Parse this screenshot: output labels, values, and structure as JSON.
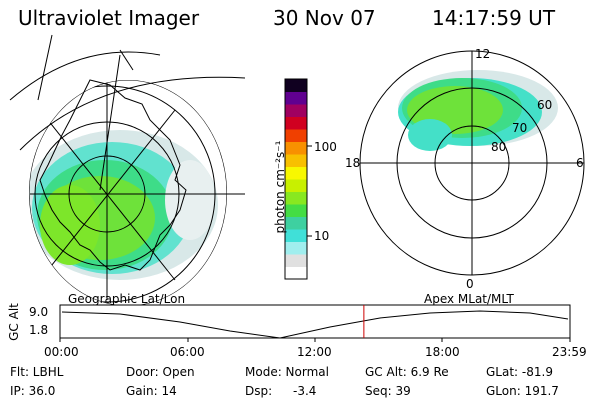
{
  "header": {
    "title": "Ultraviolet Imager",
    "date": "30 Nov 07",
    "time": "14:17:59 UT"
  },
  "left_panel": {
    "caption": "Geographic Lat/Lon"
  },
  "right_panel": {
    "caption": "Apex MLat/MLT",
    "mlt_labels": {
      "top": "12",
      "left": "18",
      "right": "6",
      "bottom": "0"
    },
    "lat_labels": [
      "60",
      "70",
      "80"
    ]
  },
  "colorbar": {
    "unit_label": "photon cm⁻²s⁻¹",
    "ticks": [
      "100",
      "10"
    ],
    "colors": [
      "#ffffff",
      "#e0e0e0",
      "#a0eeee",
      "#40e0d8",
      "#3ed0a0",
      "#44dd44",
      "#88e820",
      "#c8f000",
      "#f8f800",
      "#f8c000",
      "#f89000",
      "#f04000",
      "#d00020",
      "#a00060",
      "#600090",
      "#100020"
    ]
  },
  "timeline": {
    "ylabel": "GC Alt",
    "ytick_top": "9.0",
    "ytick_bottom": "1.8",
    "xticks": [
      "00:00",
      "06:00",
      "12:00",
      "18:00",
      "23:59"
    ],
    "current_time_hours": 14.3,
    "marker_color": "#cc0000"
  },
  "info": {
    "flt": "Flt: LBHL",
    "ip": "IP: 36.0",
    "door": "Door: Open",
    "gain": "Gain: 14",
    "mode": "Mode: Normal",
    "dsp_label": "Dsp:",
    "dsp_value": "-3.4",
    "gcalt": "GC Alt: 6.9 Re",
    "seq": "Seq: 39",
    "glat": "GLat: -81.9",
    "glon": "GLon: 191.7"
  }
}
